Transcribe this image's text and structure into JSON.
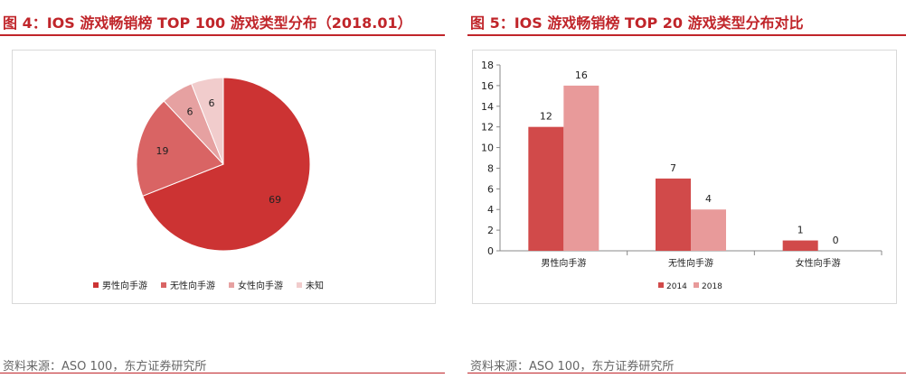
{
  "left": {
    "title": "图 4：IOS 游戏畅销榜 TOP 100 游戏类型分布（2018.01）",
    "source": "资料来源：ASO 100，东方证券研究所"
  },
  "right": {
    "title": "图 5：IOS 游戏畅销榜 TOP 20 游戏类型分布对比",
    "source": "资料来源：ASO 100，东方证券研究所"
  },
  "colors": {
    "accent": "#c0252a",
    "series_dark": "#d14a4a",
    "series_light": "#e89a9a",
    "pie": [
      "#cc3333",
      "#d96464",
      "#e6a1a1",
      "#f1cccc"
    ]
  },
  "chart_data": [
    {
      "type": "pie",
      "labels": [
        "男性向手游",
        "无性向手游",
        "女性向手游",
        "未知"
      ],
      "values": [
        69,
        19,
        6,
        6
      ],
      "legend": "bottom"
    },
    {
      "type": "bar",
      "categories": [
        "男性向手游",
        "无性向手游",
        "女性向手游"
      ],
      "series": [
        {
          "name": "2014",
          "values": [
            12,
            7,
            1
          ]
        },
        {
          "name": "2018",
          "values": [
            16,
            4,
            0
          ]
        }
      ],
      "ylim": [
        0,
        18
      ],
      "yticks": [
        0,
        2,
        4,
        6,
        8,
        10,
        12,
        14,
        16,
        18
      ],
      "grid": false,
      "legend": "bottom"
    }
  ]
}
